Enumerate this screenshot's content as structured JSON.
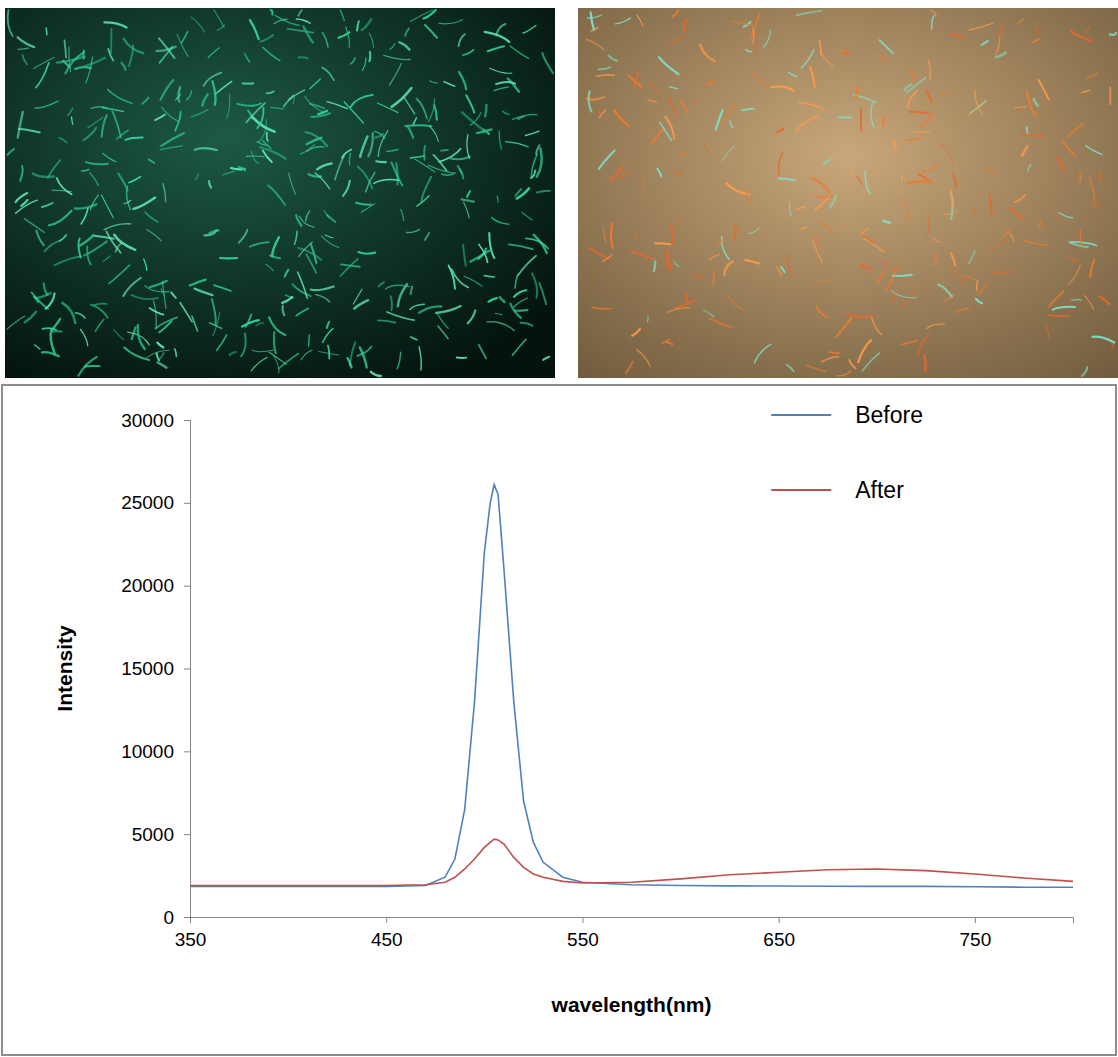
{
  "chart_data": {
    "type": "line",
    "x": [
      350,
      400,
      450,
      470,
      480,
      485,
      490,
      495,
      500,
      503,
      505,
      507,
      510,
      515,
      520,
      525,
      530,
      540,
      550,
      575,
      600,
      625,
      650,
      675,
      700,
      725,
      750,
      775,
      800
    ],
    "series": [
      {
        "name": "Before",
        "color": "#4f81bd",
        "values": [
          1850,
          1850,
          1850,
          1900,
          2400,
          3500,
          6500,
          13000,
          22000,
          25000,
          26100,
          25500,
          21000,
          13000,
          7000,
          4500,
          3300,
          2400,
          2100,
          1950,
          1900,
          1880,
          1870,
          1860,
          1850,
          1850,
          1830,
          1800,
          1800
        ]
      },
      {
        "name": "After",
        "color": "#c0504d",
        "values": [
          1900,
          1900,
          1900,
          1950,
          2100,
          2400,
          2900,
          3500,
          4200,
          4500,
          4700,
          4650,
          4400,
          3600,
          3000,
          2600,
          2400,
          2150,
          2050,
          2100,
          2300,
          2550,
          2700,
          2850,
          2900,
          2800,
          2600,
          2350,
          2150
        ]
      }
    ],
    "x_label": "wavelength(nm)",
    "y_label": "Intensity",
    "xlim": [
      350,
      800
    ],
    "xticks": [
      350,
      450,
      550,
      650,
      750
    ],
    "ylim": [
      0,
      30000
    ],
    "yticks": [
      0,
      5000,
      10000,
      15000,
      20000,
      25000,
      30000
    ],
    "grid": false,
    "legend": "top-right"
  }
}
